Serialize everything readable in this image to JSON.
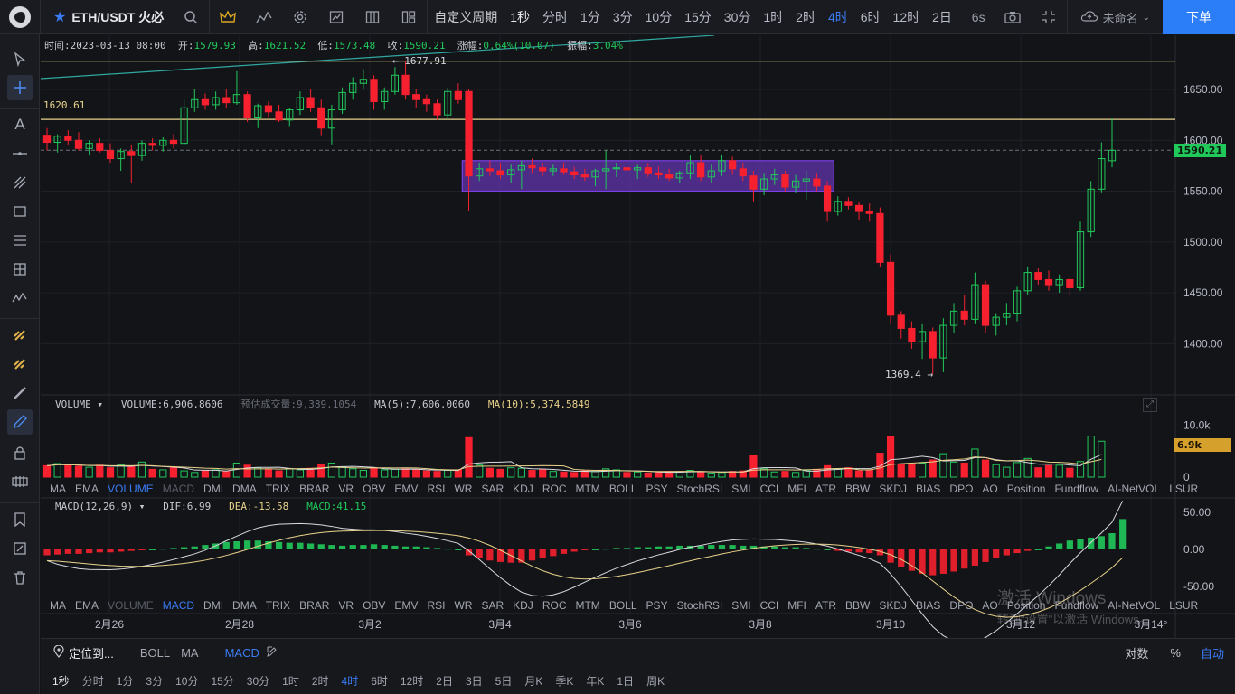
{
  "topbar": {
    "symbol": "ETH/USDT 火必",
    "period_menu": "自定义周期",
    "periods": [
      "1秒",
      "分时",
      "1分",
      "3分",
      "10分",
      "15分",
      "30分",
      "1时",
      "2时",
      "4时",
      "6时",
      "12时",
      "2日"
    ],
    "active_period": "4时",
    "refresh": "6s",
    "layout_name": "未命名",
    "order_button": "下单"
  },
  "info_bar": {
    "time_label": "时间:",
    "time_value": "2023-03-13 08:00",
    "open_label": "开:",
    "open": "1579.93",
    "high_label": "高:",
    "high": "1621.52",
    "low_label": "低:",
    "low": "1573.48",
    "close_label": "收:",
    "close": "1590.21",
    "change_label": "涨幅:",
    "change": "0.64%(10.07)",
    "amp_label": "振幅:",
    "amp": "3.04%"
  },
  "price_annotations": {
    "high_marker": "← 1677.91",
    "level_label": "1620.61",
    "low_marker": "1369.4 →",
    "current_price": "1590.21"
  },
  "volume_panel": {
    "name": "VOLUME",
    "volume": "VOLUME:6,906.8606",
    "estimate": "预估成交量:9,389.1054",
    "ma5": "MA(5):7,606.0060",
    "ma10": "MA(10):5,374.5849",
    "current_tag": "6.9k"
  },
  "macd_panel": {
    "name": "MACD(12,26,9)",
    "dif": "DIF:6.99",
    "dea": "DEA:-13.58",
    "macd": "MACD:41.15"
  },
  "indicator_tabs": [
    "MA",
    "EMA",
    "VOLUME",
    "MACD",
    "DMI",
    "DMA",
    "TRIX",
    "BRAR",
    "VR",
    "OBV",
    "EMV",
    "RSI",
    "WR",
    "SAR",
    "KDJ",
    "ROC",
    "MTM",
    "BOLL",
    "PSY",
    "StochRSI",
    "SMI",
    "CCI",
    "MFI",
    "ATR",
    "BBW",
    "SKDJ",
    "BIAS",
    "DPO",
    "AO",
    "Position",
    "Fundflow",
    "AI-NetVOL",
    "LSUR"
  ],
  "indicator_active_1": "VOLUME",
  "indicator_active_2": "MACD",
  "bottom": {
    "locate": "定位到...",
    "studies": [
      "BOLL",
      "MA"
    ],
    "sub_study": "MACD",
    "log": "对数",
    "pct": "%",
    "auto": "自动",
    "periods": [
      "1秒",
      "分时",
      "1分",
      "3分",
      "10分",
      "15分",
      "30分",
      "1时",
      "2时",
      "4时",
      "6时",
      "12时",
      "2日",
      "3日",
      "5日",
      "月K",
      "季K",
      "年K",
      "1日",
      "周K"
    ],
    "active_period": "4时"
  },
  "watermark": {
    "line1": "激活 Windows",
    "line2": "转到\"设置\"以激活 Windows。"
  },
  "colors": {
    "up": "#21c95b",
    "down": "#f6202f",
    "accent": "#2c7ef8",
    "level_line": "#e8d28a",
    "box": "#7b3fe4"
  },
  "chart_data": [
    {
      "type": "candlestick",
      "title": "ETH/USDT 4h",
      "price_axis_ticks": [
        1650,
        1600,
        1550,
        1500,
        1450,
        1400
      ],
      "price_axis_labels": [
        "1650.00",
        "1600.00",
        "1550.00",
        "1500.00",
        "1450.00",
        "1400.00"
      ],
      "x_ticks": [
        "2月26",
        "2月28",
        "3月2",
        "3月4",
        "3月6",
        "3月8",
        "3月10",
        "3月12",
        "3月14°"
      ],
      "ylim": [
        1355,
        1690
      ],
      "horizontal_lines": [
        1677.91,
        1620.61
      ],
      "ohlc": [
        [
          1605,
          1612,
          1590,
          1598
        ],
        [
          1598,
          1606,
          1588,
          1604
        ],
        [
          1604,
          1610,
          1595,
          1600
        ],
        [
          1600,
          1608,
          1590,
          1592
        ],
        [
          1592,
          1600,
          1585,
          1597
        ],
        [
          1597,
          1602,
          1588,
          1590
        ],
        [
          1590,
          1597,
          1578,
          1582
        ],
        [
          1582,
          1592,
          1570,
          1589
        ],
        [
          1589,
          1596,
          1558,
          1585
        ],
        [
          1585,
          1600,
          1580,
          1597
        ],
        [
          1597,
          1602,
          1590,
          1595
        ],
        [
          1595,
          1603,
          1589,
          1600
        ],
        [
          1600,
          1606,
          1592,
          1597
        ],
        [
          1597,
          1640,
          1595,
          1632
        ],
        [
          1632,
          1650,
          1628,
          1640
        ],
        [
          1640,
          1646,
          1630,
          1635
        ],
        [
          1635,
          1648,
          1630,
          1642
        ],
        [
          1642,
          1650,
          1632,
          1637
        ],
        [
          1637,
          1668,
          1635,
          1645
        ],
        [
          1645,
          1648,
          1618,
          1622
        ],
        [
          1622,
          1636,
          1612,
          1634
        ],
        [
          1634,
          1638,
          1622,
          1628
        ],
        [
          1628,
          1635,
          1618,
          1620
        ],
        [
          1620,
          1632,
          1614,
          1630
        ],
        [
          1630,
          1648,
          1625,
          1642
        ],
        [
          1642,
          1650,
          1628,
          1632
        ],
        [
          1632,
          1640,
          1605,
          1612
        ],
        [
          1612,
          1635,
          1596,
          1630
        ],
        [
          1630,
          1652,
          1626,
          1647
        ],
        [
          1647,
          1662,
          1640,
          1656
        ],
        [
          1656,
          1670,
          1650,
          1660
        ],
        [
          1660,
          1664,
          1630,
          1638
        ],
        [
          1638,
          1652,
          1630,
          1648
        ],
        [
          1648,
          1672,
          1645,
          1664
        ],
        [
          1664,
          1677.91,
          1640,
          1645
        ],
        [
          1645,
          1650,
          1632,
          1640
        ],
        [
          1640,
          1645,
          1628,
          1636
        ],
        [
          1636,
          1640,
          1620,
          1625
        ],
        [
          1625,
          1652,
          1620,
          1648
        ],
        [
          1648,
          1656,
          1636,
          1640
        ],
        [
          1648,
          1650,
          1530,
          1565
        ],
        [
          1565,
          1578,
          1560,
          1572
        ],
        [
          1572,
          1580,
          1565,
          1570
        ],
        [
          1570,
          1578,
          1562,
          1566
        ],
        [
          1566,
          1576,
          1558,
          1571
        ],
        [
          1571,
          1580,
          1552,
          1575
        ],
        [
          1575,
          1582,
          1568,
          1573
        ],
        [
          1573,
          1578,
          1565,
          1570
        ],
        [
          1570,
          1576,
          1565,
          1572
        ],
        [
          1572,
          1578,
          1566,
          1569
        ],
        [
          1569,
          1574,
          1562,
          1566
        ],
        [
          1566,
          1572,
          1560,
          1564
        ],
        [
          1564,
          1572,
          1555,
          1570
        ],
        [
          1570,
          1590,
          1552,
          1572
        ],
        [
          1572,
          1578,
          1564,
          1573
        ],
        [
          1573,
          1580,
          1566,
          1571
        ],
        [
          1571,
          1576,
          1562,
          1573
        ],
        [
          1573,
          1578,
          1564,
          1568
        ],
        [
          1568,
          1574,
          1562,
          1566
        ],
        [
          1566,
          1572,
          1560,
          1563
        ],
        [
          1563,
          1570,
          1558,
          1568
        ],
        [
          1568,
          1585,
          1562,
          1578
        ],
        [
          1578,
          1586,
          1560,
          1564
        ],
        [
          1564,
          1576,
          1558,
          1570
        ],
        [
          1570,
          1586,
          1565,
          1580
        ],
        [
          1580,
          1584,
          1566,
          1572
        ],
        [
          1572,
          1578,
          1560,
          1565
        ],
        [
          1565,
          1570,
          1540,
          1552
        ],
        [
          1552,
          1568,
          1546,
          1562
        ],
        [
          1562,
          1572,
          1556,
          1566
        ],
        [
          1566,
          1570,
          1550,
          1554
        ],
        [
          1554,
          1566,
          1548,
          1560
        ],
        [
          1560,
          1570,
          1542,
          1562
        ],
        [
          1562,
          1568,
          1550,
          1555
        ],
        [
          1555,
          1560,
          1520,
          1530
        ],
        [
          1530,
          1545,
          1526,
          1540
        ],
        [
          1540,
          1544,
          1532,
          1536
        ],
        [
          1536,
          1540,
          1522,
          1530
        ],
        [
          1530,
          1538,
          1520,
          1528
        ],
        [
          1528,
          1534,
          1475,
          1480
        ],
        [
          1480,
          1488,
          1420,
          1428
        ],
        [
          1428,
          1432,
          1405,
          1415
        ],
        [
          1415,
          1422,
          1395,
          1402
        ],
        [
          1402,
          1420,
          1385,
          1412
        ],
        [
          1412,
          1416,
          1370,
          1386
        ],
        [
          1386,
          1425,
          1372,
          1418
        ],
        [
          1418,
          1440,
          1410,
          1432
        ],
        [
          1432,
          1448,
          1418,
          1424
        ],
        [
          1424,
          1470,
          1420,
          1458
        ],
        [
          1458,
          1462,
          1410,
          1418
        ],
        [
          1418,
          1430,
          1408,
          1426
        ],
        [
          1426,
          1440,
          1418,
          1430
        ],
        [
          1430,
          1456,
          1422,
          1452
        ],
        [
          1452,
          1476,
          1448,
          1470
        ],
        [
          1470,
          1474,
          1458,
          1463
        ],
        [
          1463,
          1472,
          1452,
          1458
        ],
        [
          1458,
          1468,
          1450,
          1463
        ],
        [
          1463,
          1466,
          1448,
          1455
        ],
        [
          1455,
          1520,
          1452,
          1510
        ],
        [
          1510,
          1560,
          1505,
          1552
        ],
        [
          1552,
          1598,
          1548,
          1582
        ],
        [
          1579.93,
          1621.52,
          1573.48,
          1590.21
        ]
      ],
      "consolidation_box": {
        "from_index": 40,
        "to_index": 74,
        "top": 1580,
        "bottom": 1550
      }
    },
    {
      "type": "bar",
      "title": "VOLUME",
      "ylim": [
        0,
        12000
      ],
      "y_axis_labels": [
        "10.0k",
        "0"
      ],
      "values": [
        2200,
        2600,
        2400,
        2100,
        1900,
        2300,
        1800,
        2400,
        2000,
        2900,
        1500,
        1400,
        1800,
        1200,
        900,
        1300,
        1400,
        1100,
        2700,
        2300,
        1800,
        1500,
        1200,
        1600,
        1400,
        1700,
        2400,
        2700,
        1900,
        1600,
        1300,
        1800,
        1400,
        1500,
        1600,
        1400,
        1200,
        1100,
        1300,
        1400,
        7600,
        2300,
        1700,
        1500,
        1800,
        1700,
        1300,
        1500,
        1100,
        1000,
        900,
        1200,
        1100,
        1600,
        1400,
        900,
        1000,
        800,
        900,
        1100,
        1000,
        1300,
        1000,
        800,
        900,
        1100,
        1200,
        4200,
        1600,
        1000,
        1100,
        900,
        1300,
        1500,
        2200,
        1500,
        1800,
        1200,
        1400,
        4600,
        7800,
        2500,
        2500,
        2700,
        3300,
        4500,
        2900,
        2700,
        5400,
        3300,
        2400,
        1900,
        2800,
        3600,
        1800,
        2200,
        2300,
        1700,
        3000,
        7900,
        6906.8606
      ]
    },
    {
      "type": "bar",
      "title": "MACD(12,26,9)",
      "ylim": [
        -60,
        60
      ],
      "y_axis_labels": [
        "50.00",
        "0.00",
        "-50.00"
      ],
      "values": [
        -8,
        -7,
        -6,
        -6,
        -5,
        -4,
        -4,
        -3,
        -2,
        -1,
        0,
        1,
        2,
        3,
        4,
        6,
        8,
        10,
        11,
        12,
        12,
        11,
        10,
        9,
        9,
        8,
        7,
        6,
        5,
        6,
        6,
        7,
        6,
        5,
        4,
        4,
        3,
        2,
        1,
        0,
        -8,
        -12,
        -15,
        -17,
        -18,
        -18,
        -15,
        -12,
        -9,
        -6,
        -3,
        -1,
        0,
        1,
        2,
        2,
        3,
        3,
        4,
        4,
        5,
        5,
        5,
        6,
        6,
        6,
        5,
        5,
        4,
        4,
        3,
        3,
        2,
        1,
        0,
        -2,
        -3,
        -4,
        -5,
        -8,
        -18,
        -24,
        -29,
        -33,
        -35,
        -33,
        -30,
        -26,
        -22,
        -17,
        -12,
        -8,
        -5,
        -2,
        0,
        4,
        8,
        12,
        14,
        16,
        18,
        22,
        41.15
      ]
    }
  ]
}
